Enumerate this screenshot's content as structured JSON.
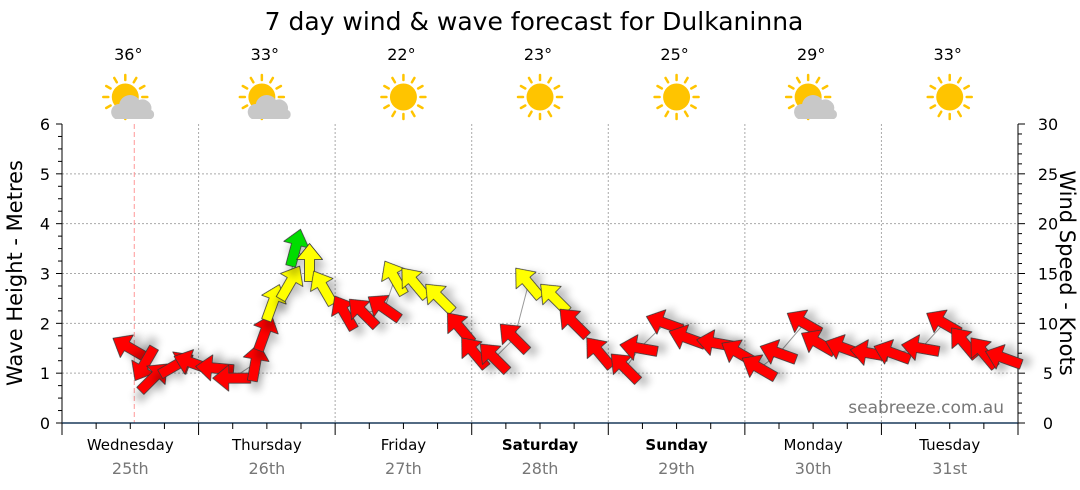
{
  "chart_data": {
    "type": "scatter",
    "title": "7 day wind & wave forecast for Dulkaninna",
    "ylabel": "Wave Height - Metres",
    "y2label": "Wind Speed - Knots",
    "ylim": [
      0,
      6
    ],
    "y2lim": [
      0,
      30
    ],
    "yticks": [
      "0",
      "1",
      "2",
      "3",
      "4",
      "5",
      "6"
    ],
    "y2ticks": [
      "0",
      "5",
      "10",
      "15",
      "20",
      "25",
      "30"
    ],
    "grid": true,
    "now_hour": 12.7,
    "watermark": "seabreeze.com.au",
    "days": [
      {
        "name": "Wednesday",
        "date": "25th",
        "bold": false,
        "temp": "36°",
        "icon": "partly-cloudy"
      },
      {
        "name": "Thursday",
        "date": "26th",
        "bold": false,
        "temp": "33°",
        "icon": "partly-cloudy"
      },
      {
        "name": "Friday",
        "date": "27th",
        "bold": false,
        "temp": "22°",
        "icon": "sunny"
      },
      {
        "name": "Saturday",
        "date": "28th",
        "bold": true,
        "temp": "23°",
        "icon": "sunny"
      },
      {
        "name": "Sunday",
        "date": "29th",
        "bold": true,
        "temp": "25°",
        "icon": "sunny"
      },
      {
        "name": "Monday",
        "date": "30th",
        "bold": false,
        "temp": "29°",
        "icon": "partly-cloudy"
      },
      {
        "name": "Tuesday",
        "date": "31st",
        "bold": false,
        "temp": "33°",
        "icon": "sunny"
      }
    ],
    "colors": {
      "red": "#ff0000",
      "yellow": "#ffff00",
      "green": "#00dd00",
      "grid": "#aaaaaa",
      "now_line": "#ff9999",
      "date": "#777777"
    },
    "wind": [
      {
        "hour": 12,
        "knots": 7.5,
        "bearing": 300,
        "color": "red"
      },
      {
        "hour": 14.6,
        "knots": 6,
        "bearing": 210,
        "color": "red"
      },
      {
        "hour": 16,
        "knots": 4.5,
        "bearing": 45,
        "color": "red"
      },
      {
        "hour": 20,
        "knots": 5.8,
        "bearing": 60,
        "color": "red"
      },
      {
        "hour": 23,
        "knots": 6,
        "bearing": 290,
        "color": "red"
      },
      {
        "hour": 27,
        "knots": 5.5,
        "bearing": 275,
        "color": "red"
      },
      {
        "hour": 30,
        "knots": 4.5,
        "bearing": 270,
        "color": "red"
      },
      {
        "hour": 34,
        "knots": 6,
        "bearing": 10,
        "color": "red"
      },
      {
        "hour": 35.6,
        "knots": 9,
        "bearing": 20,
        "color": "red"
      },
      {
        "hour": 37,
        "knots": 12,
        "bearing": 20,
        "color": "yellow"
      },
      {
        "hour": 40,
        "knots": 14,
        "bearing": 30,
        "color": "yellow"
      },
      {
        "hour": 41,
        "knots": 17.5,
        "bearing": 15,
        "color": "green"
      },
      {
        "hour": 43.5,
        "knots": 16,
        "bearing": 0,
        "color": "yellow"
      },
      {
        "hour": 46,
        "knots": 13.5,
        "bearing": 330,
        "color": "yellow"
      },
      {
        "hour": 49.7,
        "knots": 11,
        "bearing": 330,
        "color": "red"
      },
      {
        "hour": 53,
        "knots": 11,
        "bearing": 315,
        "color": "red"
      },
      {
        "hour": 56.7,
        "knots": 11.5,
        "bearing": 305,
        "color": "red"
      },
      {
        "hour": 58.5,
        "knots": 14.5,
        "bearing": 330,
        "color": "yellow"
      },
      {
        "hour": 62,
        "knots": 14,
        "bearing": 320,
        "color": "yellow"
      },
      {
        "hour": 66.4,
        "knots": 12.5,
        "bearing": 315,
        "color": "yellow"
      },
      {
        "hour": 70,
        "knots": 9.5,
        "bearing": 320,
        "color": "red"
      },
      {
        "hour": 72.5,
        "knots": 7,
        "bearing": 320,
        "color": "red"
      },
      {
        "hour": 76,
        "knots": 6.5,
        "bearing": 315,
        "color": "red"
      },
      {
        "hour": 79.5,
        "knots": 8.5,
        "bearing": 315,
        "color": "red"
      },
      {
        "hour": 82,
        "knots": 14,
        "bearing": 320,
        "color": "yellow"
      },
      {
        "hour": 86.6,
        "knots": 12.5,
        "bearing": 315,
        "color": "yellow"
      },
      {
        "hour": 90,
        "knots": 10,
        "bearing": 315,
        "color": "red"
      },
      {
        "hour": 94.5,
        "knots": 7,
        "bearing": 320,
        "color": "red"
      },
      {
        "hour": 99,
        "knots": 5.5,
        "bearing": 315,
        "color": "red"
      },
      {
        "hour": 101.5,
        "knots": 7.5,
        "bearing": 280,
        "color": "red"
      },
      {
        "hour": 106,
        "knots": 10,
        "bearing": 290,
        "color": "red"
      },
      {
        "hour": 110,
        "knots": 8.5,
        "bearing": 290,
        "color": "red"
      },
      {
        "hour": 115,
        "knots": 8,
        "bearing": 280,
        "color": "red"
      },
      {
        "hour": 119,
        "knots": 7,
        "bearing": 300,
        "color": "red"
      },
      {
        "hour": 122.6,
        "knots": 5.5,
        "bearing": 300,
        "color": "red"
      },
      {
        "hour": 126,
        "knots": 7,
        "bearing": 290,
        "color": "red"
      },
      {
        "hour": 130.5,
        "knots": 10,
        "bearing": 300,
        "color": "red"
      },
      {
        "hour": 133,
        "knots": 8,
        "bearing": 300,
        "color": "red"
      },
      {
        "hour": 137.5,
        "knots": 7.5,
        "bearing": 290,
        "color": "red"
      },
      {
        "hour": 142,
        "knots": 7,
        "bearing": 280,
        "color": "red"
      },
      {
        "hour": 146,
        "knots": 7,
        "bearing": 290,
        "color": "red"
      },
      {
        "hour": 151,
        "knots": 7.5,
        "bearing": 280,
        "color": "red"
      },
      {
        "hour": 155,
        "knots": 10,
        "bearing": 300,
        "color": "red"
      },
      {
        "hour": 158.6,
        "knots": 8,
        "bearing": 320,
        "color": "red"
      },
      {
        "hour": 162,
        "knots": 7,
        "bearing": 320,
        "color": "red"
      },
      {
        "hour": 165.6,
        "knots": 6.5,
        "bearing": 290,
        "color": "red"
      }
    ]
  }
}
